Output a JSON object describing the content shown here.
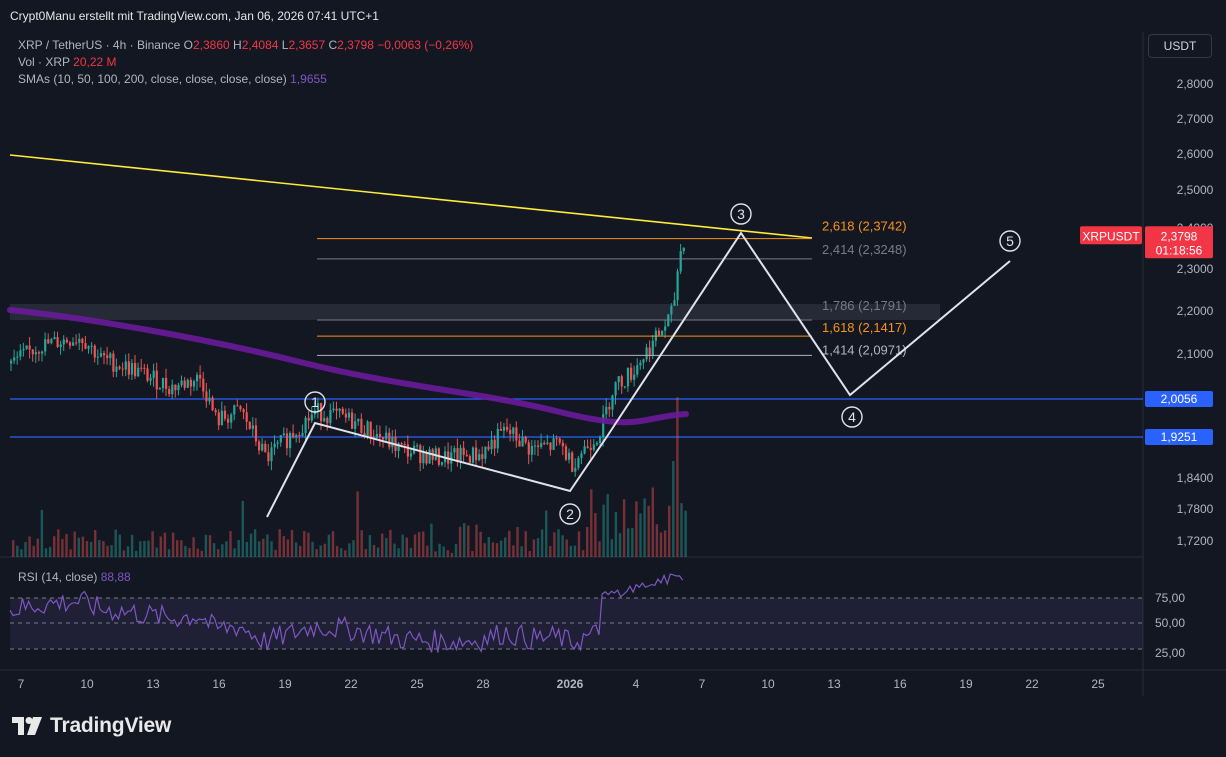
{
  "header": {
    "author_line": "Crypt0Manu erstellt mit TradingView.com, Jan 06, 2026 07:41 UTC+1"
  },
  "legend": {
    "symbol": "XRP / TetherUS · 4h · Binance",
    "open_label": "O",
    "open": "2,3860",
    "high_label": "H",
    "high": "2,4084",
    "low_label": "L",
    "low": "2,3657",
    "close_label": "C",
    "close": "2,3798",
    "change": "−0,0063 (−0,26%)",
    "vol_label": "Vol · XRP",
    "vol": "20,22 M",
    "sma_label": "SMAs (10, 50, 100, 200, close, close, close, close)",
    "sma_value": "1,9655"
  },
  "rsi": {
    "label": "RSI (14, close)",
    "value": "88,88"
  },
  "currency_button": "USDT",
  "price_tag": {
    "symbol": "XRPUSDT",
    "price": "2,3798",
    "countdown": "01:18:56"
  },
  "level_tags": [
    "2,0056",
    "1,9251"
  ],
  "fib_labels": [
    {
      "text": "2,618 (2,3742)",
      "color": "#f7931a"
    },
    {
      "text": "2,414 (2,3248)",
      "color": "#787b86"
    },
    {
      "text": "1,786 (2,1791)",
      "color": "#787b86"
    },
    {
      "text": "1,618 (2,1417)",
      "color": "#f7931a"
    },
    {
      "text": "1,414 (2,0971)",
      "color": "#b2b5be"
    }
  ],
  "wave_labels": [
    "1",
    "2",
    "3",
    "4",
    "5"
  ],
  "colors": {
    "up": "#26a69a",
    "down": "#ef5350",
    "trendline": "#ffeb3b",
    "sma": "#6a1b9a",
    "level": "#2962ff",
    "fib": "#f7931a",
    "background": "#131722"
  },
  "chart_data": {
    "type": "candlestick",
    "symbol": "XRP / TetherUS",
    "timeframe": "4h",
    "y_axis": {
      "ticks": [
        2.8,
        2.7,
        2.6,
        2.5,
        2.4,
        2.3,
        2.2,
        2.1,
        1.84,
        1.78,
        1.72
      ],
      "tick_labels": [
        "2,8000",
        "2,7000",
        "2,6000",
        "2,5000",
        "2,4000",
        "2,3000",
        "2,2000",
        "2,1000",
        "1,8400",
        "1,7800",
        "1,7200"
      ]
    },
    "x_axis": {
      "tick_labels": [
        "7",
        "10",
        "13",
        "16",
        "19",
        "22",
        "25",
        "28",
        "2026",
        "4",
        "7",
        "10",
        "13",
        "16",
        "19",
        "22",
        "25"
      ]
    },
    "rsi_axis": {
      "tick_labels": [
        "75,00",
        "50,00",
        "25,00"
      ]
    },
    "ohlc": {
      "open": 2.386,
      "high": 2.4084,
      "low": 2.3657,
      "close": 2.3798,
      "change": -0.0063,
      "change_pct": -0.26
    },
    "horizontal_levels": [
      2.0056,
      1.9251
    ],
    "fib_extension_levels": [
      {
        "ratio": 2.618,
        "price": 2.3742
      },
      {
        "ratio": 2.414,
        "price": 2.3248
      },
      {
        "ratio": 1.786,
        "price": 2.1791
      },
      {
        "ratio": 1.618,
        "price": 2.1417
      },
      {
        "ratio": 1.414,
        "price": 2.0971
      }
    ],
    "sma_value": 1.9655,
    "rsi_value": 88.88,
    "elliott_wave_labels": [
      "1",
      "2",
      "3",
      "4",
      "5"
    ]
  }
}
